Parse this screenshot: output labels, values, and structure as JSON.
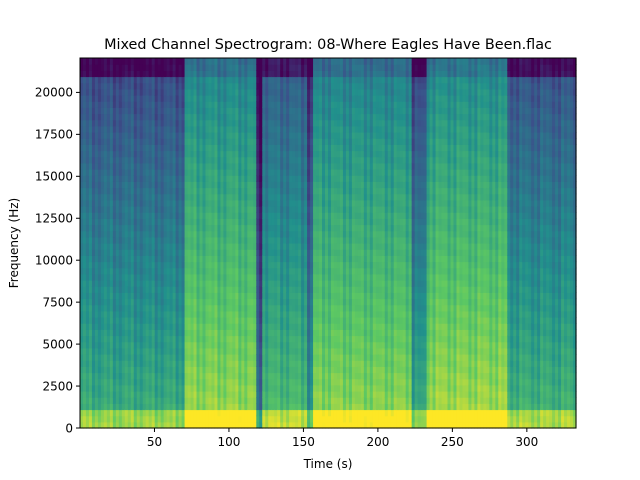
{
  "chart_data": {
    "type": "heatmap",
    "title": "Mixed Channel Spectrogram: 08-Where Eagles Have Been.flac",
    "xlabel": "Time (s)",
    "ylabel": "Frequency (Hz)",
    "xlim": [
      0,
      333
    ],
    "ylim": [
      0,
      22050
    ],
    "xticks": [
      50,
      100,
      150,
      200,
      250,
      300
    ],
    "yticks": [
      0,
      2500,
      5000,
      7500,
      10000,
      12500,
      15000,
      17500,
      20000
    ],
    "colormap": "viridis",
    "segments": [
      {
        "t_start": 0,
        "t_end": 70,
        "level": 0.55
      },
      {
        "t_start": 70,
        "t_end": 118,
        "level": 0.78
      },
      {
        "t_start": 118,
        "t_end": 122,
        "level": 0.3
      },
      {
        "t_start": 122,
        "t_end": 153,
        "level": 0.62
      },
      {
        "t_start": 153,
        "t_end": 157,
        "level": 0.45
      },
      {
        "t_start": 157,
        "t_end": 222,
        "level": 0.76
      },
      {
        "t_start": 222,
        "t_end": 232,
        "level": 0.52
      },
      {
        "t_start": 232,
        "t_end": 287,
        "level": 0.8
      },
      {
        "t_start": 287,
        "t_end": 333,
        "level": 0.58
      }
    ]
  }
}
